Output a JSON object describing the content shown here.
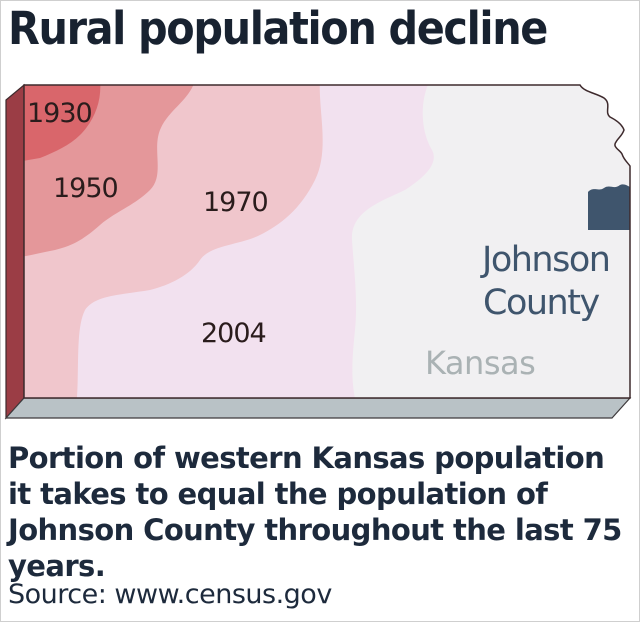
{
  "title": "Rural population decline",
  "map": {
    "state_label": "Kansas",
    "county_label_line1": "Johnson",
    "county_label_line2": "County",
    "regions": [
      {
        "year": "1930",
        "color": "#d9666b"
      },
      {
        "year": "1950",
        "color": "#e4979a"
      },
      {
        "year": "1970",
        "color": "#f0c6cc"
      },
      {
        "year": "2004",
        "color": "#f2e1ef"
      }
    ],
    "base_color": "#f1f0f2",
    "county_color": "#3f556d",
    "state_label_color": "#aab2b4",
    "county_label_color": "#3f556d"
  },
  "caption": "Portion of western Kansas population it takes to equal the population of Johnson County throughout the last 75 years.",
  "source": "Source: www.census.gov"
}
